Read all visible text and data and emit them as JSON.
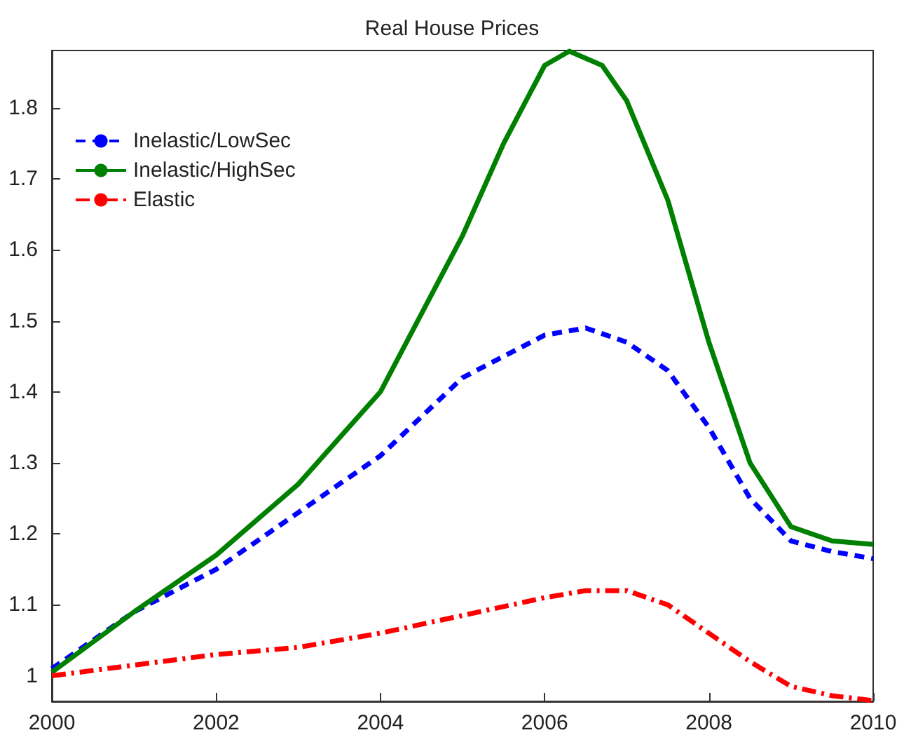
{
  "chart_data": {
    "type": "line",
    "title": "Real House Prices",
    "x": [
      2000,
      2001,
      2002,
      2003,
      2004,
      2005,
      2006,
      2006.5,
      2007,
      2007.5,
      2008,
      2008.5,
      2009,
      2009.5,
      2010
    ],
    "series": [
      {
        "name": "Inelastic/LowSec",
        "color": "#0000ff",
        "line_style": "dashed",
        "values": [
          1.01,
          1.09,
          1.15,
          1.23,
          1.31,
          1.42,
          1.48,
          1.49,
          1.47,
          1.43,
          1.35,
          1.25,
          1.19,
          1.175,
          1.165
        ]
      },
      {
        "name": "Inelastic/HighSec",
        "color": "#008000",
        "line_style": "solid",
        "x": [
          2000,
          2001,
          2002,
          2003,
          2004,
          2005,
          2005.5,
          2006,
          2006.3,
          2006.7,
          2007,
          2007.5,
          2008,
          2008.5,
          2009,
          2009.5,
          2010
        ],
        "values": [
          1.005,
          1.09,
          1.17,
          1.27,
          1.4,
          1.62,
          1.75,
          1.86,
          1.88,
          1.86,
          1.81,
          1.67,
          1.47,
          1.3,
          1.21,
          1.19,
          1.185
        ]
      },
      {
        "name": "Elastic",
        "color": "#ff0000",
        "line_style": "dashdot",
        "values": [
          1.0,
          1.015,
          1.03,
          1.04,
          1.06,
          1.085,
          1.11,
          1.12,
          1.12,
          1.1,
          1.06,
          1.02,
          0.985,
          0.972,
          0.965
        ]
      }
    ],
    "xlim": [
      2000,
      2010
    ],
    "xticks": [
      2000,
      2002,
      2004,
      2006,
      2008,
      2010
    ],
    "ylim": [
      0.964,
      1.881
    ],
    "yticks": [
      1,
      1.1,
      1.2,
      1.3,
      1.4,
      1.5,
      1.6,
      1.7,
      1.8
    ],
    "grid": false,
    "legend": "top left",
    "marker": "none"
  }
}
